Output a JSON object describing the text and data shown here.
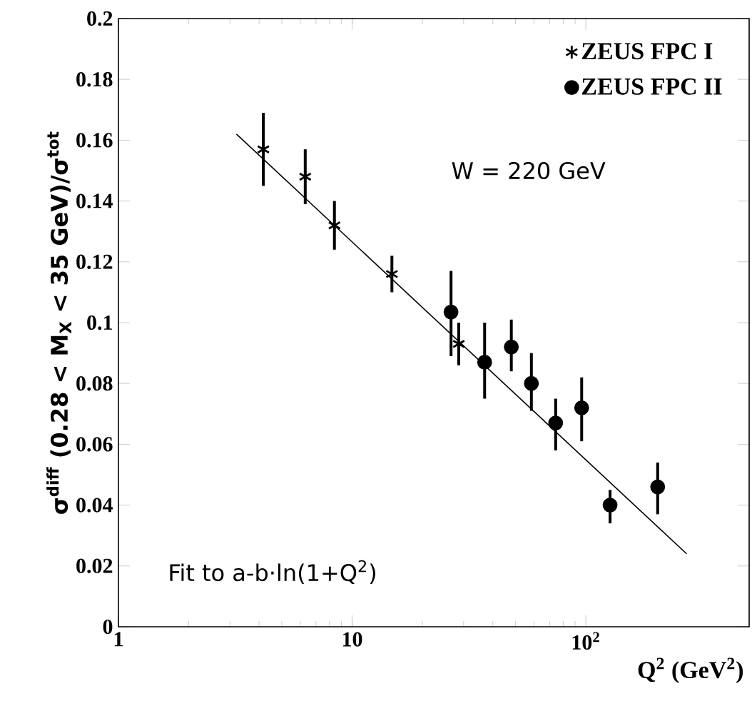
{
  "chart_data": {
    "type": "scatter",
    "xlabel": "Q$^{2}$ (GeV$^{2}$)",
    "ylabel": "σ$^{diff}$ (0.28 < M$_{X}$ < 35 GeV)/σ$^{tot}$",
    "log": "x",
    "xlim": [
      1,
      500
    ],
    "xticks": [
      1,
      10,
      {
        "value": 100,
        "label": "10$^{2}$"
      }
    ],
    "ylim": [
      0,
      0.2
    ],
    "yticks": [
      0,
      0.02,
      0.04,
      0.06,
      0.08,
      0.1,
      0.12,
      0.14,
      0.16,
      0.18,
      0.2
    ],
    "legend": "top right",
    "annotations": [
      "W = 220 GeV",
      "Fit to a-b·ln(1+Q$^{2}$)"
    ],
    "series": [
      {
        "name": "ZEUS FPC I",
        "marker": "cross",
        "color": "#000000",
        "x": [
          4.17,
          6.3,
          8.4,
          14.8,
          28.6
        ],
        "values": [
          0.157,
          0.148,
          0.132,
          0.116,
          0.093
        ],
        "errors": [
          [
            0.145,
            0.169
          ],
          [
            0.139,
            0.157
          ],
          [
            0.124,
            0.14
          ],
          [
            0.11,
            0.122
          ],
          [
            0.086,
            0.1
          ]
        ]
      },
      {
        "name": "ZEUS FPC II",
        "marker": "circle",
        "color": "#000000",
        "x": [
          26.5,
          36.9,
          48,
          58.5,
          74.3,
          96,
          127,
          203
        ],
        "values": [
          0.1035,
          0.087,
          0.092,
          0.08,
          0.067,
          0.072,
          0.04,
          0.046
        ],
        "errors": [
          [
            0.089,
            0.117
          ],
          [
            0.075,
            0.1
          ],
          [
            0.084,
            0.101
          ],
          [
            0.071,
            0.09
          ],
          [
            0.058,
            0.075
          ],
          [
            0.061,
            0.082
          ],
          [
            0.034,
            0.045
          ],
          [
            0.037,
            0.054
          ]
        ]
      },
      {
        "type": "line",
        "marker": "none",
        "color": "#000000",
        "x": [
          3.2,
          270
        ],
        "values": [
          0.162,
          0.024
        ]
      }
    ]
  }
}
